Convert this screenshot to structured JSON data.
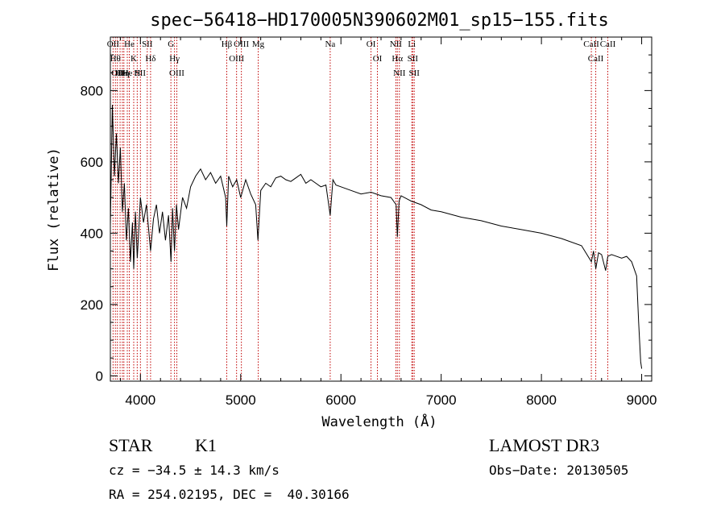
{
  "chart_data": {
    "type": "line",
    "title": "spec−56418−HD170005N390602M01_sp15−155.fits",
    "xlabel": "Wavelength (Å)",
    "ylabel": "Flux (relative)",
    "xlim": [
      3700,
      9100
    ],
    "ylim": [
      -15,
      950
    ],
    "xticks": [
      4000,
      5000,
      6000,
      7000,
      8000,
      9000
    ],
    "yticks": [
      0,
      200,
      400,
      600,
      800
    ],
    "series": [
      {
        "name": "flux",
        "x": [
          3700,
          3720,
          3740,
          3760,
          3780,
          3800,
          3820,
          3840,
          3860,
          3880,
          3900,
          3920,
          3933,
          3950,
          3968,
          3985,
          4000,
          4030,
          4060,
          4101,
          4130,
          4160,
          4190,
          4220,
          4250,
          4280,
          4305,
          4320,
          4340,
          4360,
          4380,
          4420,
          4460,
          4500,
          4550,
          4600,
          4650,
          4700,
          4750,
          4800,
          4850,
          4861,
          4880,
          4920,
          4960,
          5000,
          5050,
          5100,
          5150,
          5172,
          5200,
          5250,
          5300,
          5350,
          5400,
          5450,
          5500,
          5550,
          5600,
          5650,
          5700,
          5750,
          5800,
          5850,
          5893,
          5920,
          5950,
          6000,
          6100,
          6200,
          6300,
          6400,
          6500,
          6550,
          6563,
          6580,
          6600,
          6700,
          6800,
          6900,
          7000,
          7200,
          7400,
          7600,
          7800,
          8000,
          8200,
          8400,
          8498,
          8520,
          8542,
          8570,
          8600,
          8640,
          8662,
          8700,
          8800,
          8850,
          8900,
          8950,
          8970,
          8990,
          9000
        ],
        "values": [
          420,
          760,
          560,
          680,
          540,
          640,
          460,
          540,
          380,
          470,
          320,
          430,
          300,
          460,
          330,
          420,
          500,
          430,
          480,
          350,
          440,
          480,
          400,
          460,
          380,
          450,
          320,
          470,
          350,
          480,
          410,
          500,
          470,
          530,
          560,
          580,
          550,
          570,
          540,
          560,
          500,
          420,
          560,
          530,
          550,
          500,
          550,
          510,
          480,
          380,
          520,
          540,
          530,
          555,
          560,
          550,
          545,
          555,
          565,
          540,
          550,
          540,
          530,
          535,
          450,
          550,
          535,
          530,
          520,
          510,
          515,
          505,
          500,
          480,
          390,
          490,
          505,
          490,
          480,
          465,
          460,
          445,
          435,
          420,
          410,
          400,
          385,
          365,
          320,
          350,
          300,
          345,
          340,
          295,
          335,
          340,
          330,
          335,
          320,
          280,
          150,
          40,
          20
        ]
      }
    ],
    "lines": [
      {
        "x": 3727,
        "label": "OII"
      },
      {
        "x": 3750,
        "label": "Hθ"
      },
      {
        "x": 3770,
        "label": "OII"
      },
      {
        "x": 3797,
        "label": "He"
      },
      {
        "x": 3820,
        "label": "OII"
      },
      {
        "x": 3835,
        "label": "Hη"
      },
      {
        "x": 3869,
        "label": "He"
      },
      {
        "x": 3889,
        "label": "He"
      },
      {
        "x": 3933,
        "label": "K"
      },
      {
        "x": 3968,
        "label": "H"
      },
      {
        "x": 4000,
        "label": "SII"
      },
      {
        "x": 4068,
        "label": "SII"
      },
      {
        "x": 4101,
        "label": "Hδ"
      },
      {
        "x": 4304,
        "label": "G"
      },
      {
        "x": 4340,
        "label": "Hγ"
      },
      {
        "x": 4363,
        "label": "OIII"
      },
      {
        "x": 4861,
        "label": "Hβ"
      },
      {
        "x": 4959,
        "label": "OIII"
      },
      {
        "x": 5007,
        "label": "OIII"
      },
      {
        "x": 5175,
        "label": "Mg"
      },
      {
        "x": 5893,
        "label": "Na"
      },
      {
        "x": 6300,
        "label": "OI"
      },
      {
        "x": 6364,
        "label": "OI"
      },
      {
        "x": 6548,
        "label": "NII"
      },
      {
        "x": 6563,
        "label": "Hα"
      },
      {
        "x": 6583,
        "label": "NII"
      },
      {
        "x": 6707,
        "label": "Li"
      },
      {
        "x": 6716,
        "label": "SII"
      },
      {
        "x": 6731,
        "label": "SII"
      },
      {
        "x": 8498,
        "label": "CaII"
      },
      {
        "x": 8542,
        "label": "CaII"
      },
      {
        "x": 8662,
        "label": "CaII"
      }
    ],
    "labels": {
      "class_type": "STAR",
      "subclass": "K1",
      "survey": "LAMOST DR3",
      "redshift": "cz = −34.5 ± 14.3 km/s",
      "obs_date": "Obs−Date: 20130505",
      "coords": "RA = 254.02195, DEC =  40.30166"
    },
    "colors": {
      "background": "#ffffff",
      "spectrum": "#000000",
      "line_marker": "#c00000"
    }
  }
}
